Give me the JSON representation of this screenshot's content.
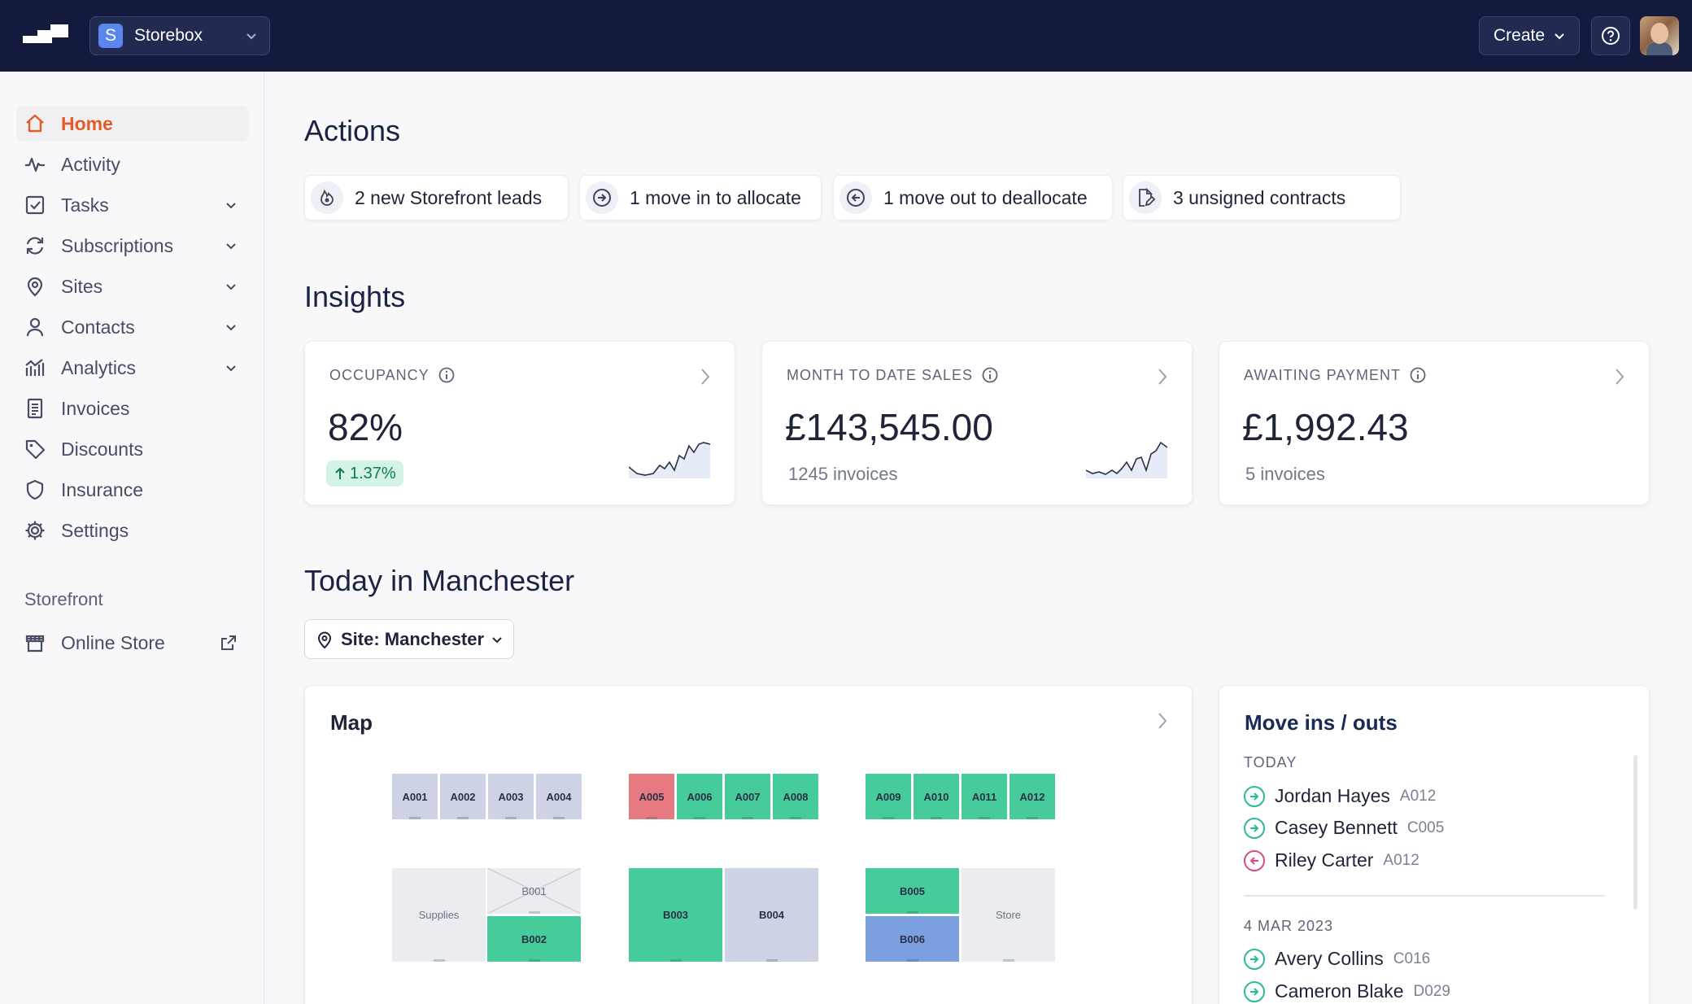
{
  "topbar": {
    "workspace_initial": "S",
    "workspace_name": "Storebox",
    "create_label": "Create"
  },
  "sidebar": {
    "items": [
      {
        "label": "Home",
        "icon": "home-icon",
        "active": true
      },
      {
        "label": "Activity",
        "icon": "activity-icon"
      },
      {
        "label": "Tasks",
        "icon": "tasks-icon",
        "expandable": true
      },
      {
        "label": "Subscriptions",
        "icon": "subscriptions-icon",
        "expandable": true
      },
      {
        "label": "Sites",
        "icon": "map-pin-icon",
        "expandable": true
      },
      {
        "label": "Contacts",
        "icon": "user-icon",
        "expandable": true
      },
      {
        "label": "Analytics",
        "icon": "analytics-icon",
        "expandable": true
      },
      {
        "label": "Invoices",
        "icon": "invoice-icon"
      },
      {
        "label": "Discounts",
        "icon": "tag-icon"
      },
      {
        "label": "Insurance",
        "icon": "shield-icon"
      },
      {
        "label": "Settings",
        "icon": "gear-icon"
      }
    ],
    "storefront_heading": "Storefront",
    "storefront_item": "Online Store"
  },
  "actions": {
    "heading": "Actions",
    "chips": [
      {
        "label": "2 new Storefront leads",
        "icon": "leads-icon"
      },
      {
        "label": "1 move in to allocate",
        "icon": "arrow-right-circle-icon"
      },
      {
        "label": "1 move out to deallocate",
        "icon": "arrow-left-circle-icon"
      },
      {
        "label": "3 unsigned contracts",
        "icon": "contract-sign-icon"
      }
    ]
  },
  "insights": {
    "heading": "Insights",
    "occupancy": {
      "label": "OCCUPANCY",
      "value": "82%",
      "change": "1.37%"
    },
    "sales": {
      "label": "MONTH TO DATE SALES",
      "value": "£143,545.00",
      "sub": "1245 invoices"
    },
    "awaiting": {
      "label": "AWAITING PAYMENT",
      "value": "£1,992.43",
      "sub": "5 invoices"
    }
  },
  "today": {
    "heading": "Today in Manchester",
    "site_filter": "Site: Manchester"
  },
  "map": {
    "title": "Map",
    "units": [
      {
        "id": "A001",
        "status": "blue"
      },
      {
        "id": "A002",
        "status": "blue"
      },
      {
        "id": "A003",
        "status": "blue"
      },
      {
        "id": "A004",
        "status": "blue"
      },
      {
        "id": "A005",
        "status": "red"
      },
      {
        "id": "A006",
        "status": "green"
      },
      {
        "id": "A007",
        "status": "green"
      },
      {
        "id": "A008",
        "status": "green"
      },
      {
        "id": "A009",
        "status": "green"
      },
      {
        "id": "A010",
        "status": "green"
      },
      {
        "id": "A011",
        "status": "green"
      },
      {
        "id": "A012",
        "status": "green"
      },
      {
        "id": "Supplies",
        "status": "grey"
      },
      {
        "id": "B001",
        "status": "crossed"
      },
      {
        "id": "B002",
        "status": "green"
      },
      {
        "id": "B003",
        "status": "green"
      },
      {
        "id": "B004",
        "status": "blue"
      },
      {
        "id": "B005",
        "status": "green"
      },
      {
        "id": "B006",
        "status": "mid-blue"
      },
      {
        "id": "Store",
        "status": "grey"
      }
    ]
  },
  "moves": {
    "title": "Move ins / outs",
    "sections": [
      {
        "heading": "TODAY",
        "rows": [
          {
            "name": "Jordan Hayes",
            "unit": "A012",
            "type": "in"
          },
          {
            "name": "Casey Bennett",
            "unit": "C005",
            "type": "in"
          },
          {
            "name": "Riley Carter",
            "unit": "A012",
            "type": "out"
          }
        ]
      },
      {
        "heading": "4 MAR 2023",
        "rows": [
          {
            "name": "Avery Collins",
            "unit": "C016",
            "type": "in"
          },
          {
            "name": "Cameron Blake",
            "unit": "D029",
            "type": "in"
          }
        ]
      }
    ]
  },
  "colors": {
    "topbar": "#131a3d",
    "accent": "#e25c2a",
    "unit_green": "#45cc9a",
    "unit_blue": "#cdd3e5",
    "unit_red": "#e77a80",
    "move_in": "#2cb89c",
    "move_out": "#d84d86"
  }
}
